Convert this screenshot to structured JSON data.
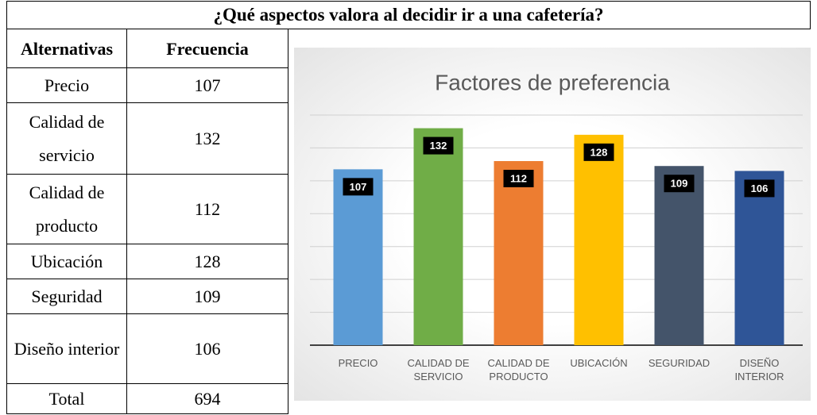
{
  "table": {
    "title": "¿Qué aspectos valora al decidir ir a una cafetería?",
    "header": [
      "Alternativas",
      "Frecuencia"
    ],
    "rows": [
      [
        "Precio",
        "107"
      ],
      [
        "Calidad de servicio",
        "132"
      ],
      [
        "Calidad de producto",
        "112"
      ],
      [
        "Ubicación",
        "128"
      ],
      [
        "Seguridad",
        "109"
      ],
      [
        "Diseño interior",
        "106"
      ],
      [
        "Total",
        "694"
      ]
    ]
  },
  "chart_data": {
    "type": "bar",
    "title": "Factores de preferencia",
    "categories": [
      "PRECIO",
      "CALIDAD DE SERVICIO",
      "CALIDAD DE PRODUCTO",
      "UBICACIÓN",
      "SEGURIDAD",
      "DISEÑO INTERIOR"
    ],
    "values": [
      107,
      132,
      112,
      128,
      109,
      106
    ],
    "colors": [
      "#5b9bd5",
      "#70ad47",
      "#ed7d31",
      "#ffc000",
      "#44546a",
      "#2f5597"
    ],
    "ylim": [
      0,
      140
    ],
    "yticks": [
      0,
      20,
      40,
      60,
      80,
      100,
      120,
      140
    ],
    "grid": true
  }
}
